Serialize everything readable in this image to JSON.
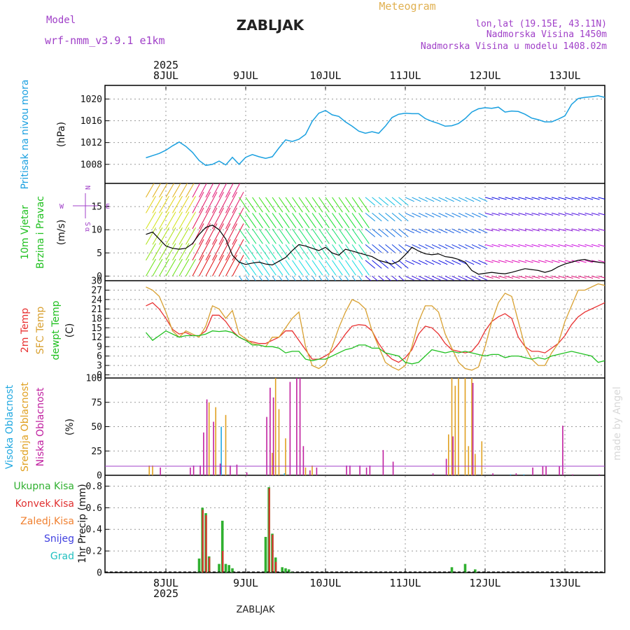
{
  "header": {
    "model_label": "Model",
    "model_name": "wrf-nmm_v3.9.1 e1km",
    "station": "ZABLJAK",
    "chart_kind": "Meteogram",
    "lonlat": "lon,lat (19.15E, 43.11N)",
    "elevation": "Nadmorska Visina 1450m",
    "model_elevation": "Nadmorska Visina u modelu 1408.02m",
    "credit": "made by Angel",
    "footer": "ZABLJAK"
  },
  "colors": {
    "model": "#a040c8",
    "meteogram": "#e0b050",
    "pressure": "#1aa0e0",
    "temp2m": "#e83030",
    "sfc": "#d8a030",
    "dew": "#20c020",
    "precip_total": "#30b030",
    "precip_conv": "#e03030",
    "freezing": "#f08030",
    "snow": "#4040e0",
    "hail": "#20c0c0",
    "cloud_high": "#20a8e0",
    "cloud_mid": "#e0a020",
    "cloud_low": "#c020a0",
    "wind": "#000000"
  },
  "chart_data": [
    {
      "type": "line",
      "panel": "pressure",
      "ylabel": [
        "Pritisak na nivou mora",
        "(hPa)"
      ],
      "yticks": [
        1008,
        1012,
        1016,
        1020
      ],
      "ylim": [
        1004.5,
        1022.5
      ],
      "x_hours_from_8jul00": [
        -6,
        -4,
        -2,
        0,
        2,
        4,
        6,
        8,
        10,
        12,
        14,
        16,
        18,
        20,
        22,
        24,
        26,
        28,
        30,
        32,
        34,
        36,
        38,
        40,
        42,
        44,
        46,
        48,
        50,
        52,
        54,
        56,
        58,
        60,
        62,
        64,
        66,
        68,
        70,
        72,
        74,
        76,
        78,
        80,
        82,
        84,
        86,
        88,
        90,
        92,
        94,
        96,
        98,
        100,
        102,
        104,
        106,
        108,
        110,
        112,
        114,
        116,
        118,
        120,
        122,
        124,
        126,
        128,
        130,
        132,
        134,
        136,
        138,
        140,
        142,
        144,
        146,
        148
      ],
      "values": [
        1009.2,
        1009.6,
        1010.0,
        1010.6,
        1011.4,
        1012.1,
        1011.3,
        1010.2,
        1008.7,
        1007.8,
        1008.0,
        1008.6,
        1007.9,
        1009.3,
        1008.0,
        1009.3,
        1009.8,
        1009.4,
        1009.1,
        1009.4,
        1011.0,
        1012.5,
        1012.2,
        1012.6,
        1013.5,
        1015.9,
        1017.4,
        1017.9,
        1017.1,
        1016.8,
        1015.8,
        1015.0,
        1014.1,
        1013.7,
        1014.0,
        1013.7,
        1015.0,
        1016.6,
        1017.2,
        1017.4,
        1017.3,
        1017.3,
        1016.4,
        1015.9,
        1015.5,
        1015.0,
        1015.1,
        1015.5,
        1016.4,
        1017.6,
        1018.2,
        1018.4,
        1018.3,
        1018.5,
        1017.6,
        1017.8,
        1017.7,
        1017.2,
        1016.5,
        1016.2,
        1015.8,
        1015.8,
        1016.3,
        1016.9,
        1019.0,
        1020.1,
        1020.3,
        1020.4,
        1020.6,
        1020.3,
        1019.8,
        1019.3,
        1018.8,
        1018.0,
        1017.6,
        1017.2,
        1016.9,
        1016.6
      ]
    },
    {
      "type": "line",
      "panel": "wind",
      "ylabel": [
        "10m Vjetar",
        "Brzina i Pravac",
        "(m/s)"
      ],
      "compass": {
        "north": "N",
        "south": "S",
        "west": "W",
        "east": "E",
        "alpha": "α"
      },
      "yticks": [
        0,
        5,
        10,
        15
      ],
      "ylim": [
        -1,
        20
      ],
      "x_hours_from_8jul00": [
        -6,
        -4,
        -2,
        0,
        2,
        4,
        6,
        8,
        10,
        12,
        14,
        16,
        18,
        20,
        22,
        24,
        26,
        28,
        30,
        32,
        34,
        36,
        38,
        40,
        42,
        44,
        46,
        48,
        50,
        52,
        54,
        56,
        58,
        60,
        62,
        64,
        66,
        68,
        70,
        72,
        74,
        76,
        78,
        80,
        82,
        84,
        86,
        88,
        90,
        92,
        94,
        96,
        98,
        100,
        102,
        104,
        106,
        108,
        110,
        112,
        114,
        116,
        118,
        120,
        122,
        124,
        126,
        128,
        130,
        132,
        134,
        136,
        138,
        140,
        142,
        144,
        146,
        148
      ],
      "values": [
        9,
        9.5,
        8,
        6.5,
        6,
        5.8,
        6,
        7,
        9,
        10.5,
        11,
        10,
        8,
        4.5,
        3,
        2.5,
        2.8,
        3,
        2.6,
        2.4,
        3.2,
        4,
        5.5,
        6.8,
        6.5,
        6,
        5.5,
        6.2,
        5,
        4.5,
        5.8,
        5.4,
        5,
        4.6,
        4.2,
        3.4,
        3,
        2.6,
        3.2,
        4.6,
        6.2,
        5.4,
        4.8,
        4.6,
        4.8,
        4.2,
        4,
        3.6,
        3,
        1.2,
        0.4,
        0.6,
        0.8,
        0.6,
        0.5,
        0.8,
        1.2,
        1.6,
        1.4,
        1.2,
        0.8,
        1.2,
        2,
        2.6,
        3,
        3.4,
        3.6,
        3.2,
        3,
        2.8,
        2.5,
        2,
        1.8,
        2.2,
        1.6,
        1.2,
        1.4,
        1.8
      ]
    },
    {
      "type": "line",
      "panel": "temperature",
      "ylabel": [
        "2m Temp",
        "SFC Temp",
        "dewpt Temp",
        "(C)"
      ],
      "yticks": [
        0,
        3,
        6,
        9,
        12,
        15,
        18,
        21,
        24,
        27,
        30
      ],
      "ylim": [
        -1,
        30
      ],
      "x_hours_from_8jul00": [
        -6,
        -4,
        -2,
        0,
        2,
        4,
        6,
        8,
        10,
        12,
        14,
        16,
        18,
        20,
        22,
        24,
        26,
        28,
        30,
        32,
        34,
        36,
        38,
        40,
        42,
        44,
        46,
        48,
        50,
        52,
        54,
        56,
        58,
        60,
        62,
        64,
        66,
        68,
        70,
        72,
        74,
        76,
        78,
        80,
        82,
        84,
        86,
        88,
        90,
        92,
        94,
        96,
        98,
        100,
        102,
        104,
        106,
        108,
        110,
        112,
        114,
        116,
        118,
        120,
        122,
        124,
        126,
        128,
        130,
        132,
        134,
        136,
        138,
        140,
        142,
        144,
        146,
        148
      ],
      "series": [
        {
          "name": "2m Temp",
          "color": "#e83030",
          "values": [
            22,
            23,
            21,
            18,
            14.5,
            13,
            13.5,
            12.5,
            12.5,
            14,
            19,
            19,
            17,
            14,
            12,
            11,
            10.5,
            10,
            10,
            11,
            12,
            14,
            14,
            11,
            8,
            5,
            5,
            6,
            7.5,
            10,
            13,
            15.5,
            16,
            15.8,
            14,
            10,
            7,
            5,
            4,
            5.5,
            8,
            13,
            15.5,
            15,
            13,
            10,
            8,
            7.5,
            7,
            7.5,
            10,
            14,
            17,
            18.5,
            19.5,
            18,
            12,
            9,
            7.5,
            7.5,
            7,
            8.5,
            10,
            12.5,
            16,
            18.5,
            20,
            21,
            22,
            23,
            22.5,
            21,
            19,
            16,
            13,
            11,
            10,
            10
          ]
        },
        {
          "name": "SFC Temp",
          "color": "#d8a030",
          "values": [
            28,
            27,
            25,
            20,
            14,
            12,
            14,
            13,
            12,
            15.5,
            22,
            21,
            18,
            20.5,
            13,
            11.5,
            10,
            9.5,
            9,
            12,
            12,
            15,
            18,
            20,
            9,
            3,
            2,
            3.5,
            9,
            15,
            20,
            24,
            23,
            21,
            14,
            9,
            4,
            2.5,
            1.5,
            3,
            9,
            17,
            22,
            22,
            20,
            13,
            8.5,
            4,
            2,
            1.5,
            2.5,
            9,
            17,
            23,
            26,
            25,
            17,
            9,
            5,
            3,
            3,
            7,
            10,
            17,
            22,
            27,
            27,
            28,
            29,
            28.5,
            27,
            24,
            19,
            13,
            9,
            7,
            6,
            6
          ]
        },
        {
          "name": "dewpt Temp",
          "color": "#20c020",
          "values": [
            13.5,
            11,
            12.5,
            14,
            13,
            12,
            12.5,
            12.5,
            12.5,
            13,
            14,
            13.8,
            14,
            13.5,
            12,
            11,
            9.5,
            9.5,
            9,
            9,
            8.5,
            7,
            7.5,
            7.5,
            5,
            4.5,
            5,
            5,
            6,
            7,
            8,
            8.5,
            9.5,
            9.5,
            8.5,
            8.5,
            7,
            6.5,
            6,
            4,
            3.5,
            4,
            6,
            8,
            7.5,
            7,
            7.5,
            7,
            7.5,
            7,
            6.5,
            6,
            6.5,
            6.5,
            5.5,
            6,
            6,
            5.5,
            5,
            5.5,
            5,
            6,
            6.5,
            7,
            7.5,
            7,
            6.5,
            6,
            4,
            4.5,
            5.5,
            6.5,
            7,
            7.5,
            8,
            8,
            9,
            10
          ]
        }
      ]
    },
    {
      "type": "bar",
      "panel": "clouds",
      "ylabel": [
        "Visoka Oblacnost",
        "Srednja Oblacnost",
        "Niska Oblacnost",
        "(%)"
      ],
      "yticks": [
        0,
        25,
        50,
        75,
        100
      ],
      "ylim": [
        0,
        100
      ],
      "series": [
        {
          "name": "Visoka Oblacnost",
          "color": "#20a8e0",
          "bars": [
            [
              17,
              50
            ],
            [
              36,
              2
            ],
            [
              104,
              1
            ],
            [
              108,
              1
            ]
          ]
        },
        {
          "name": "Srednja Oblacnost",
          "color": "#e0a020",
          "bars": [
            [
              -5,
              10
            ],
            [
              -4,
              10
            ],
            [
              13,
              75
            ],
            [
              15,
              70
            ],
            [
              18,
              62
            ],
            [
              32,
              23
            ],
            [
              33,
              100
            ],
            [
              34,
              68
            ],
            [
              36,
              38
            ],
            [
              42,
              8
            ],
            [
              44,
              10
            ],
            [
              85,
              42
            ],
            [
              86,
              100
            ],
            [
              87,
              92
            ],
            [
              88,
              100
            ],
            [
              90,
              100
            ],
            [
              91,
              30
            ],
            [
              92,
              100
            ],
            [
              93,
              22
            ],
            [
              95,
              35
            ]
          ]
        },
        {
          "name": "Niska Oblacnost",
          "color": "#c020a0",
          "bars": [
            [
              -2,
              8
            ],
            [
              7,
              8
            ],
            [
              8,
              10
            ],
            [
              10,
              10
            ],
            [
              11,
              44
            ],
            [
              12,
              78
            ],
            [
              14,
              55
            ],
            [
              16,
              12
            ],
            [
              19,
              10
            ],
            [
              21,
              11
            ],
            [
              24,
              3
            ],
            [
              30,
              60
            ],
            [
              31,
              90
            ],
            [
              32,
              80
            ],
            [
              37,
              96
            ],
            [
              39,
              100
            ],
            [
              40,
              100
            ],
            [
              41,
              30
            ],
            [
              43,
              5
            ],
            [
              45,
              8
            ],
            [
              54,
              10
            ],
            [
              55,
              10
            ],
            [
              58,
              10
            ],
            [
              60,
              8
            ],
            [
              61,
              10
            ],
            [
              65,
              26
            ],
            [
              68,
              14
            ],
            [
              80,
              2
            ],
            [
              84,
              17
            ],
            [
              86,
              40
            ],
            [
              92,
              95
            ],
            [
              98,
              2
            ],
            [
              105,
              2
            ],
            [
              110,
              8
            ],
            [
              113,
              9
            ],
            [
              114,
              9
            ],
            [
              118,
              9
            ],
            [
              119,
              51
            ],
            [
              122,
              1
            ],
            [
              130,
              1
            ]
          ]
        }
      ]
    },
    {
      "type": "bar",
      "panel": "precip",
      "ylabel": [
        "1hr Precip (mm)"
      ],
      "legend": [
        "Ukupna Kisa",
        "Konvek.Kisa",
        "Zaledj.Kisa",
        "Snijeg",
        "Grad"
      ],
      "yticks": [
        0,
        0.2,
        0.4,
        0.6,
        0.8
      ],
      "ylim": [
        0,
        0.9
      ],
      "series": [
        {
          "name": "Ukupna Kisa",
          "color": "#30b030",
          "bars": [
            [
              10,
              0.13
            ],
            [
              11,
              0.6
            ],
            [
              12,
              0.55
            ],
            [
              13,
              0.15
            ],
            [
              16,
              0.08
            ],
            [
              17,
              0.48
            ],
            [
              18,
              0.08
            ],
            [
              19,
              0.07
            ],
            [
              20,
              0.04
            ],
            [
              30,
              0.33
            ],
            [
              31,
              0.79
            ],
            [
              32,
              0.36
            ],
            [
              33,
              0.14
            ],
            [
              35,
              0.05
            ],
            [
              36,
              0.04
            ],
            [
              37,
              0.03
            ],
            [
              38,
              0.01
            ],
            [
              86,
              0.05
            ],
            [
              90,
              0.08
            ],
            [
              93,
              0.03
            ]
          ]
        },
        {
          "name": "Konvek.Kisa",
          "color": "#e03030",
          "bars": [
            [
              11,
              0.58
            ],
            [
              12,
              0.53
            ],
            [
              13,
              0.14
            ],
            [
              17,
              0.2
            ],
            [
              31,
              0.78
            ],
            [
              32,
              0.35
            ],
            [
              33,
              0.1
            ]
          ]
        }
      ]
    }
  ],
  "time_axis": {
    "year": "2025",
    "days": [
      {
        "label": "8JUL",
        "hour": 0
      },
      {
        "label": "9JUL",
        "hour": 24
      },
      {
        "label": "10JUL",
        "hour": 48
      },
      {
        "label": "11JUL",
        "hour": 72
      },
      {
        "label": "12JUL",
        "hour": 96
      },
      {
        "label": "13JUL",
        "hour": 120
      }
    ]
  }
}
